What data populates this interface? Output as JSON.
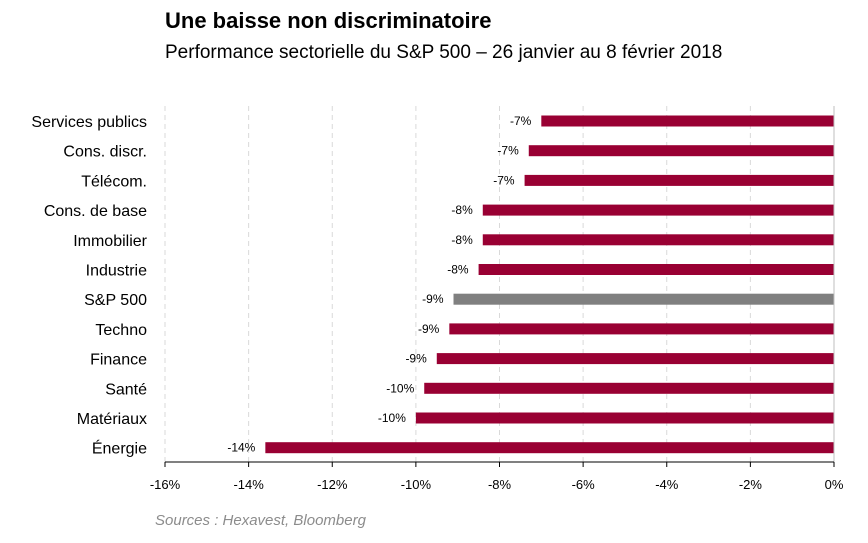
{
  "chart_data": {
    "type": "bar",
    "orientation": "horizontal",
    "title": "Une baisse non discriminatoire",
    "subtitle": "Performance sectorielle du S&P 500 – 26 janvier au 8 février 2018",
    "source": "Sources : Hexavest, Bloomberg",
    "categories": [
      "Services publics",
      "Cons. discr.",
      "Télécom.",
      "Cons. de base",
      "Immobilier",
      "Industrie",
      "S&P 500",
      "Techno",
      "Finance",
      "Santé",
      "Matériaux",
      "Énergie"
    ],
    "values": [
      -7.0,
      -7.3,
      -7.4,
      -8.4,
      -8.4,
      -8.5,
      -9.1,
      -9.2,
      -9.5,
      -9.8,
      -10.0,
      -13.6
    ],
    "data_labels": [
      "-7%",
      "-7%",
      "-7%",
      "-8%",
      "-8%",
      "-8%",
      "-9%",
      "-9%",
      "-9%",
      "-10%",
      "-10%",
      "-14%"
    ],
    "xlim": [
      -16,
      0
    ],
    "xticks": [
      -16,
      -14,
      -12,
      -10,
      -8,
      -6,
      -4,
      -2,
      0
    ],
    "xtick_labels": [
      "-16%",
      "-14%",
      "-12%",
      "-10%",
      "-8%",
      "-6%",
      "-4%",
      "-2%",
      "0%"
    ],
    "grid": "vertical dashed",
    "colors": {
      "bar": "#990033",
      "highlight": "#808080",
      "highlight_category": "S&P 500",
      "grid": "#d9d9d9",
      "source_text": "#8c8c8c"
    }
  }
}
